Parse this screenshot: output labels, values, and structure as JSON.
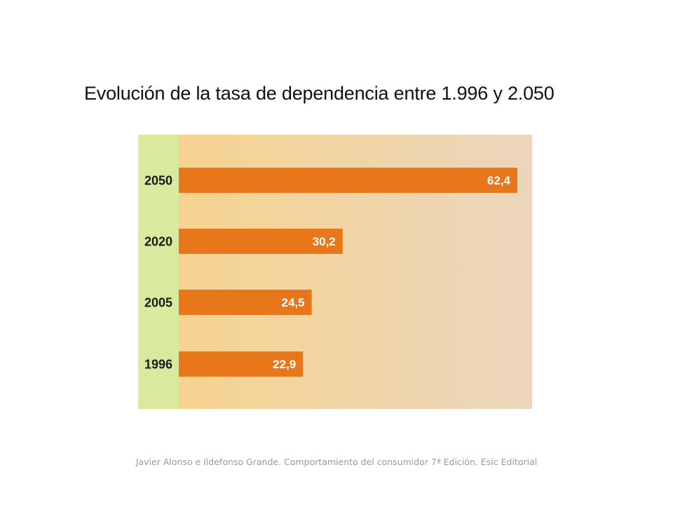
{
  "title": "Evolución de la tasa de dependencia entre 1.996 y 2.050",
  "source": "Javier Alonso e Ildefonso Grande. Comportamiento del consumidor 7ª Edición. Esic Editorial",
  "colors": {
    "bar": "#e8761a",
    "label_column": "#d9e99e",
    "plot_gradient_start": "#f6d38f",
    "plot_gradient_end": "#ebd6bd",
    "bar_label": "#ffffff",
    "category_label": "#1a1a1a"
  },
  "chart_data": {
    "type": "bar",
    "orientation": "horizontal",
    "categories": [
      "2050",
      "2020",
      "2005",
      "1996"
    ],
    "values": [
      62.4,
      30.2,
      24.5,
      22.9
    ],
    "value_labels": [
      "62,4",
      "30,2",
      "24,5",
      "22,9"
    ],
    "title": "Evolución de la tasa de dependencia entre 1.996 y 2.050",
    "xlabel": "",
    "ylabel": "",
    "grid": false,
    "legend": "none"
  }
}
